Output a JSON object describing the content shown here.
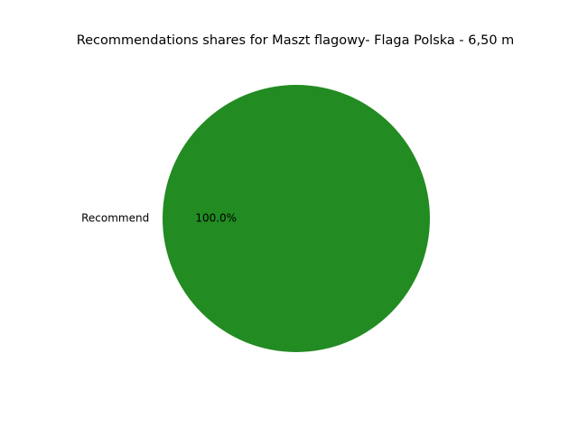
{
  "chart_data": {
    "type": "pie",
    "title": "Recommendations shares for Maszt flagowy- Flaga Polska - 6,50 m",
    "slices": [
      {
        "label": "Recommend",
        "value": 100.0,
        "pct_label": "100.0%",
        "color": "#228b22"
      }
    ],
    "legend": "none"
  }
}
